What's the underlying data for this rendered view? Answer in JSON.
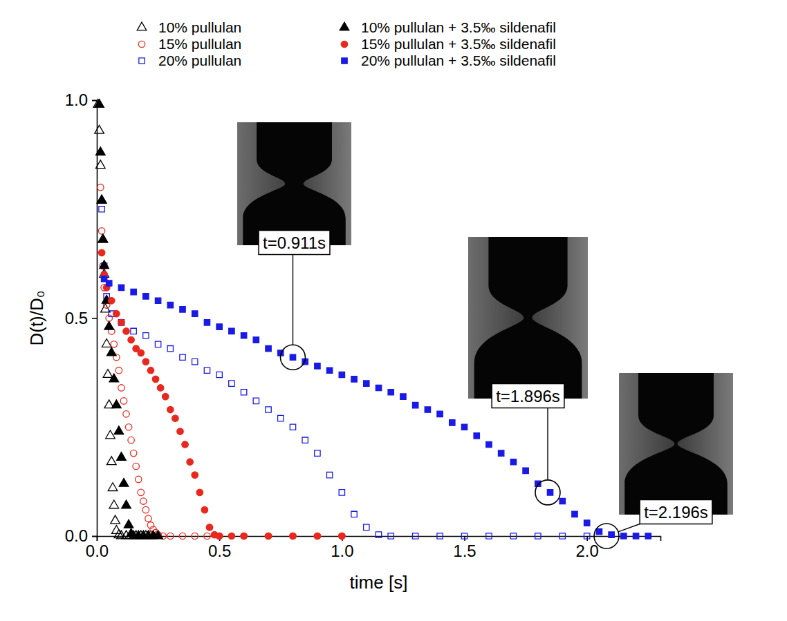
{
  "chart_data": {
    "type": "scatter",
    "x_label": "time [s]",
    "y_label": "D(t)/D₀",
    "xlim": [
      0,
      2.3
    ],
    "ylim": [
      0,
      1
    ],
    "xticks": [
      {
        "value": 0,
        "label": "0.0"
      },
      0.5,
      {
        "value": 1,
        "label": "1.0"
      },
      1.5,
      {
        "value": 2,
        "label": "2.0"
      }
    ],
    "yticks": [
      {
        "value": 0,
        "label": "0.0"
      },
      0.5,
      {
        "value": 1,
        "label": "1.0"
      }
    ],
    "grid": false,
    "legend": "top",
    "series": [
      {
        "name": "10% pullulan",
        "color": "#000000",
        "marker": "triangle-open",
        "x": [
          0.005,
          0.01,
          0.015,
          0.02,
          0.025,
          0.03,
          0.035,
          0.04,
          0.045,
          0.05,
          0.055,
          0.06,
          0.065,
          0.07,
          0.075,
          0.08,
          0.09,
          0.1,
          0.12,
          0.14,
          0.16,
          0.18,
          0.2,
          0.22
        ],
        "values": [
          0.99,
          0.93,
          0.85,
          0.77,
          0.68,
          0.6,
          0.52,
          0.44,
          0.37,
          0.3,
          0.23,
          0.17,
          0.11,
          0.07,
          0.035,
          0.012,
          0.002,
          0,
          0,
          0,
          0,
          0,
          0,
          0
        ]
      },
      {
        "name": "15% pullulan",
        "color": "#e8281e",
        "marker": "circle-open",
        "x": [
          0.015,
          0.02,
          0.025,
          0.03,
          0.04,
          0.05,
          0.06,
          0.07,
          0.08,
          0.09,
          0.1,
          0.11,
          0.12,
          0.13,
          0.14,
          0.15,
          0.16,
          0.17,
          0.18,
          0.19,
          0.2,
          0.21,
          0.22,
          0.23,
          0.24,
          0.25,
          0.27,
          0.3,
          0.35,
          0.4,
          0.45,
          0.5,
          0.6,
          0.7,
          0.8,
          0.9,
          1.0
        ],
        "values": [
          0.8,
          0.7,
          0.62,
          0.57,
          0.53,
          0.5,
          0.47,
          0.44,
          0.41,
          0.38,
          0.34,
          0.31,
          0.28,
          0.25,
          0.22,
          0.19,
          0.16,
          0.13,
          0.1,
          0.08,
          0.06,
          0.04,
          0.025,
          0.015,
          0.008,
          0.003,
          0,
          0,
          0,
          0,
          0,
          0,
          0,
          0,
          0,
          0,
          0
        ]
      },
      {
        "name": "20% pullulan",
        "color": "#1a1ae6",
        "marker": "square-open",
        "x": [
          0.02,
          0.03,
          0.04,
          0.06,
          0.1,
          0.15,
          0.2,
          0.25,
          0.3,
          0.35,
          0.4,
          0.45,
          0.5,
          0.55,
          0.6,
          0.65,
          0.7,
          0.75,
          0.8,
          0.85,
          0.9,
          0.95,
          1.0,
          1.05,
          1.1,
          1.15,
          1.2,
          1.3,
          1.4,
          1.5,
          1.6,
          1.7,
          1.8,
          1.9,
          2.0
        ],
        "values": [
          0.75,
          0.62,
          0.55,
          0.51,
          0.49,
          0.47,
          0.46,
          0.44,
          0.43,
          0.41,
          0.4,
          0.38,
          0.37,
          0.35,
          0.33,
          0.31,
          0.29,
          0.27,
          0.25,
          0.22,
          0.19,
          0.14,
          0.1,
          0.05,
          0.02,
          0.003,
          0,
          0,
          0,
          0,
          0,
          0,
          0,
          0,
          0
        ]
      },
      {
        "name": "10% pullulan + 3.5‰ sildenafil",
        "color": "#000000",
        "marker": "triangle",
        "x": [
          0.01,
          0.015,
          0.02,
          0.025,
          0.03,
          0.04,
          0.05,
          0.06,
          0.07,
          0.08,
          0.09,
          0.1,
          0.11,
          0.12,
          0.13,
          0.14,
          0.15,
          0.17,
          0.19,
          0.21,
          0.23,
          0.25
        ],
        "values": [
          0.99,
          0.88,
          0.77,
          0.68,
          0.62,
          0.54,
          0.48,
          0.42,
          0.36,
          0.3,
          0.24,
          0.18,
          0.12,
          0.07,
          0.025,
          0.005,
          0,
          0,
          0,
          0,
          0,
          0
        ]
      },
      {
        "name": "15% pullulan + 3.5‰ sildenafil",
        "color": "#e8281e",
        "marker": "circle",
        "x": [
          0.02,
          0.03,
          0.04,
          0.06,
          0.08,
          0.1,
          0.12,
          0.14,
          0.16,
          0.18,
          0.2,
          0.22,
          0.24,
          0.26,
          0.28,
          0.3,
          0.32,
          0.34,
          0.36,
          0.38,
          0.4,
          0.42,
          0.44,
          0.46,
          0.48,
          0.5,
          0.55,
          0.6,
          0.7,
          0.8,
          0.9,
          1.0
        ],
        "values": [
          0.65,
          0.6,
          0.57,
          0.54,
          0.51,
          0.49,
          0.47,
          0.45,
          0.43,
          0.42,
          0.4,
          0.38,
          0.36,
          0.34,
          0.32,
          0.29,
          0.27,
          0.24,
          0.21,
          0.17,
          0.14,
          0.1,
          0.06,
          0.02,
          0.003,
          0,
          0,
          0,
          0,
          0,
          0,
          0
        ]
      },
      {
        "name": "20% pullulan + 3.5‰ sildenafil",
        "color": "#1a1ae6",
        "marker": "square",
        "x": [
          0.03,
          0.05,
          0.1,
          0.15,
          0.2,
          0.25,
          0.3,
          0.35,
          0.4,
          0.45,
          0.5,
          0.55,
          0.6,
          0.65,
          0.7,
          0.75,
          0.8,
          0.85,
          0.9,
          0.95,
          1.0,
          1.05,
          1.1,
          1.15,
          1.2,
          1.25,
          1.3,
          1.35,
          1.4,
          1.45,
          1.5,
          1.55,
          1.6,
          1.65,
          1.7,
          1.75,
          1.8,
          1.85,
          1.9,
          1.95,
          2.0,
          2.05,
          2.1,
          2.15,
          2.2,
          2.25
        ],
        "values": [
          0.59,
          0.58,
          0.57,
          0.56,
          0.55,
          0.54,
          0.53,
          0.52,
          0.51,
          0.49,
          0.48,
          0.47,
          0.46,
          0.45,
          0.43,
          0.42,
          0.41,
          0.4,
          0.39,
          0.38,
          0.37,
          0.36,
          0.35,
          0.34,
          0.33,
          0.32,
          0.3,
          0.29,
          0.28,
          0.26,
          0.25,
          0.23,
          0.21,
          0.19,
          0.17,
          0.15,
          0.12,
          0.1,
          0.08,
          0.05,
          0.03,
          0.01,
          0.003,
          0,
          0,
          0
        ]
      }
    ],
    "annotations": [
      {
        "text": "t=0.911s",
        "x": 0.8,
        "y": 0.41
      },
      {
        "text": "t=1.896s",
        "x": 1.84,
        "y": 0.1
      },
      {
        "text": "t=2.196s",
        "x": 2.08,
        "y": 0
      }
    ]
  }
}
